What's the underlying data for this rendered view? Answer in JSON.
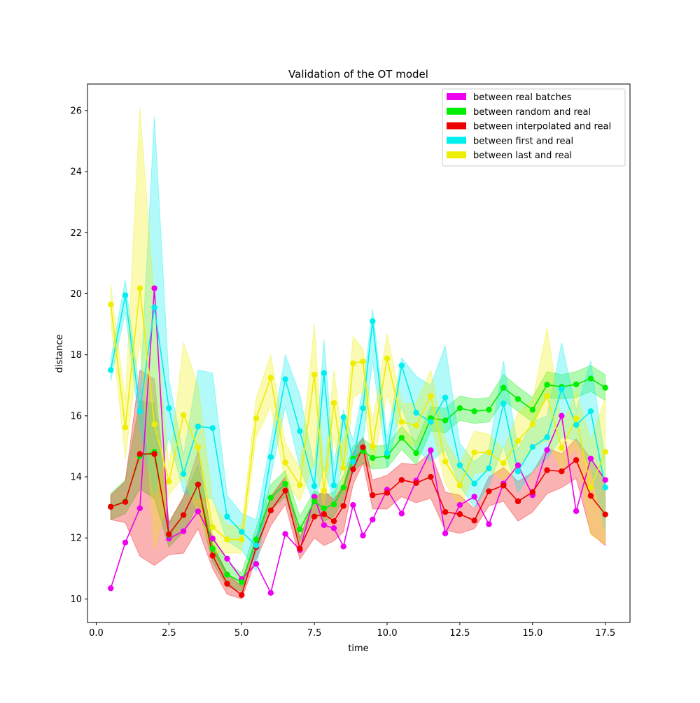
{
  "chart_data": {
    "type": "line",
    "title": "Validation of the OT model",
    "xlabel": "time",
    "ylabel": "distance",
    "xlim": [
      -0.3,
      18.35
    ],
    "ylim": [
      9.23,
      26.87
    ],
    "xticks": [
      0.0,
      2.5,
      5.0,
      7.5,
      10.0,
      12.5,
      15.0,
      17.5
    ],
    "xtick_labels": [
      "0.0",
      "2.5",
      "5.0",
      "7.5",
      "10.0",
      "12.5",
      "15.0",
      "17.5"
    ],
    "yticks": [
      10,
      12,
      14,
      16,
      18,
      20,
      22,
      24,
      26
    ],
    "ytick_labels": [
      "10",
      "12",
      "14",
      "16",
      "18",
      "20",
      "22",
      "24",
      "26"
    ],
    "grid": false,
    "legend_position": "top-right",
    "x": [
      0.5,
      1.0,
      1.5,
      2.0,
      2.5,
      3.0,
      3.5,
      4.0,
      4.5,
      5.0,
      5.5,
      6.0,
      6.5,
      7.0,
      7.5,
      7.83,
      8.17,
      8.5,
      8.83,
      9.17,
      9.5,
      10.0,
      10.5,
      11.0,
      11.5,
      12.0,
      12.5,
      13.0,
      13.5,
      14.0,
      14.5,
      15.0,
      15.5,
      16.0,
      16.5,
      17.0,
      17.5
    ],
    "series": [
      {
        "name": "between real batches",
        "color": "#ee00ee",
        "band": false,
        "values": [
          10.35,
          11.85,
          12.97,
          20.18,
          11.98,
          12.22,
          12.87,
          11.98,
          11.32,
          10.65,
          11.15,
          10.2,
          12.13,
          11.6,
          13.35,
          12.42,
          12.32,
          11.72,
          13.08,
          12.08,
          12.6,
          13.58,
          12.8,
          13.88,
          14.87,
          12.15,
          13.08,
          13.35,
          12.45,
          13.78,
          14.38,
          13.4,
          14.88,
          16.0,
          12.88,
          14.6,
          13.9
        ]
      },
      {
        "name": "between random and real",
        "color": "#00ee00",
        "band": true,
        "values": [
          13.02,
          13.2,
          14.68,
          14.82,
          12.1,
          12.75,
          13.75,
          11.65,
          10.8,
          10.55,
          11.95,
          13.32,
          13.77,
          12.28,
          13.2,
          12.97,
          13.1,
          13.65,
          14.6,
          14.85,
          14.62,
          14.68,
          15.28,
          14.78,
          15.92,
          15.85,
          16.25,
          16.15,
          16.2,
          16.92,
          16.55,
          16.2,
          17.02,
          16.95,
          17.03,
          17.22,
          16.92
        ],
        "lower": [
          12.6,
          12.8,
          13.6,
          13.3,
          11.7,
          12.2,
          13.1,
          11.2,
          10.4,
          10.25,
          11.55,
          12.9,
          13.35,
          11.85,
          12.85,
          12.55,
          12.7,
          13.25,
          14.2,
          14.45,
          14.25,
          14.3,
          14.9,
          14.4,
          15.5,
          15.45,
          15.85,
          15.75,
          15.8,
          16.5,
          16.15,
          15.8,
          16.6,
          16.55,
          16.6,
          16.8,
          16.5
        ],
        "upper": [
          13.45,
          13.9,
          16.5,
          16.4,
          12.5,
          13.3,
          14.4,
          12.1,
          11.2,
          10.85,
          12.35,
          13.75,
          14.2,
          12.7,
          13.55,
          13.4,
          13.5,
          14.05,
          15.0,
          15.25,
          15.0,
          15.05,
          15.65,
          15.15,
          16.3,
          16.25,
          16.65,
          16.55,
          16.6,
          17.35,
          16.95,
          16.6,
          17.45,
          17.35,
          17.45,
          17.65,
          17.35
        ]
      },
      {
        "name": "between interpolated and real",
        "color": "#ee0000",
        "band": true,
        "values": [
          13.02,
          13.18,
          14.75,
          14.75,
          12.12,
          12.75,
          13.75,
          11.42,
          10.5,
          10.13,
          11.7,
          12.9,
          13.55,
          11.65,
          12.7,
          12.78,
          12.55,
          13.05,
          14.25,
          14.97,
          13.4,
          13.48,
          13.9,
          13.8,
          14.0,
          12.85,
          12.78,
          12.57,
          13.53,
          13.72,
          13.2,
          13.5,
          14.22,
          14.18,
          14.55,
          13.38,
          12.77
        ],
        "lower": [
          12.6,
          12.5,
          11.4,
          11.1,
          11.45,
          11.5,
          12.3,
          11.0,
          10.15,
          10.0,
          11.3,
          12.4,
          13.1,
          11.3,
          12.0,
          11.75,
          11.9,
          12.2,
          13.75,
          14.45,
          12.95,
          12.95,
          13.35,
          13.15,
          13.3,
          12.25,
          12.15,
          12.3,
          13.05,
          13.2,
          12.55,
          12.85,
          13.45,
          13.65,
          13.95,
          12.15,
          11.75
        ],
        "upper": [
          13.4,
          13.85,
          17.5,
          17.2,
          12.5,
          13.35,
          14.85,
          11.8,
          10.85,
          10.4,
          12.05,
          13.35,
          14.0,
          12.0,
          13.3,
          13.55,
          13.25,
          13.75,
          14.8,
          15.3,
          13.9,
          14.05,
          14.45,
          14.4,
          14.8,
          13.5,
          13.4,
          12.95,
          14.0,
          14.3,
          13.85,
          14.15,
          14.95,
          14.75,
          15.25,
          14.6,
          13.85
        ]
      },
      {
        "name": "between first and real",
        "color": "#00eeee",
        "band": true,
        "values": [
          17.5,
          19.95,
          16.15,
          19.55,
          16.25,
          14.1,
          15.65,
          15.6,
          12.7,
          12.2,
          11.75,
          14.65,
          17.2,
          15.5,
          13.7,
          17.4,
          13.72,
          15.95,
          14.5,
          16.25,
          19.1,
          14.78,
          17.65,
          16.1,
          15.8,
          16.6,
          14.38,
          13.78,
          14.28,
          16.4,
          14.18,
          14.98,
          15.3,
          16.88,
          15.7,
          16.15,
          13.65
        ],
        "lower": [
          17.15,
          19.4,
          15.6,
          13.4,
          15.3,
          13.5,
          13.3,
          13.3,
          11.9,
          11.6,
          10.9,
          14.0,
          16.3,
          14.3,
          13.1,
          14.3,
          13.2,
          14.5,
          14.1,
          15.1,
          17.8,
          14.3,
          16.3,
          14.9,
          14.5,
          14.9,
          13.7,
          13.0,
          13.7,
          15.0,
          13.5,
          14.2,
          14.6,
          15.3,
          15.2,
          14.3,
          12.2
        ],
        "upper": [
          17.85,
          20.45,
          16.7,
          25.8,
          17.2,
          14.7,
          17.5,
          17.4,
          13.4,
          12.8,
          12.6,
          15.2,
          18.0,
          16.7,
          14.3,
          18.5,
          14.4,
          16.2,
          15.2,
          16.9,
          19.5,
          15.3,
          17.9,
          17.3,
          17.0,
          18.3,
          15.1,
          14.5,
          14.9,
          17.8,
          14.9,
          15.8,
          16.0,
          18.4,
          16.2,
          17.8,
          14.5
        ]
      },
      {
        "name": "between last and real",
        "color": "#eeee00",
        "band": true,
        "values": [
          19.65,
          15.62,
          20.18,
          15.72,
          13.85,
          16.02,
          14.97,
          12.35,
          11.95,
          11.95,
          15.92,
          17.25,
          14.47,
          13.73,
          17.35,
          13.55,
          16.42,
          14.3,
          17.72,
          17.78,
          15.0,
          17.88,
          15.8,
          15.68,
          16.65,
          14.5,
          13.72,
          14.8,
          14.8,
          14.45,
          15.18,
          15.72,
          16.65,
          14.95,
          15.92,
          13.65,
          14.82
        ],
        "lower": [
          19.1,
          14.6,
          18.5,
          11.6,
          13.4,
          14.0,
          12.8,
          11.5,
          11.5,
          11.5,
          15.3,
          16.3,
          13.8,
          13.2,
          14.5,
          13.0,
          15.3,
          13.6,
          16.6,
          16.8,
          14.3,
          16.7,
          15.2,
          15.0,
          15.8,
          13.8,
          13.0,
          14.1,
          14.2,
          13.9,
          14.2,
          14.9,
          15.2,
          14.2,
          15.0,
          12.1,
          11.8
        ],
        "upper": [
          20.3,
          16.5,
          26.1,
          19.8,
          14.3,
          18.4,
          17.0,
          13.2,
          12.4,
          12.4,
          16.6,
          18.0,
          15.1,
          14.3,
          19.0,
          14.1,
          17.5,
          15.0,
          18.6,
          18.2,
          15.8,
          18.7,
          16.4,
          16.4,
          17.5,
          15.2,
          14.4,
          15.5,
          15.4,
          14.9,
          16.1,
          16.5,
          18.9,
          15.7,
          16.8,
          15.2,
          16.6
        ]
      }
    ]
  }
}
